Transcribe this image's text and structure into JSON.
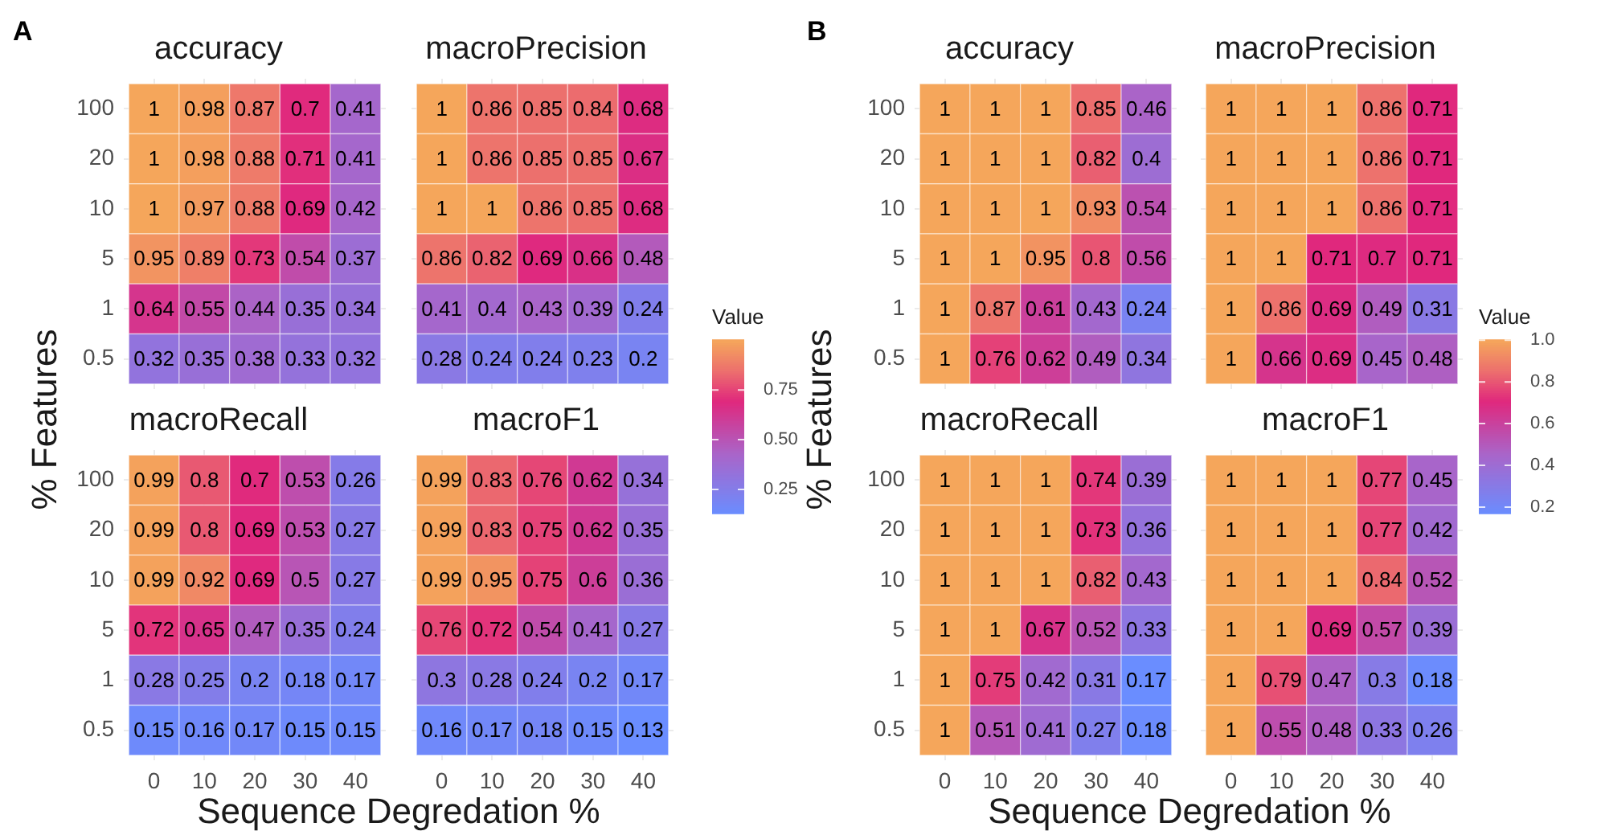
{
  "chart_data": [
    {
      "type": "heatmap",
      "title": "accuracy",
      "ylabel": "% Features",
      "annotations": [
        "A"
      ],
      "categories": [
        "0",
        "10",
        "20",
        "30",
        "40"
      ],
      "y_categories": [
        "100",
        "20",
        "10",
        "5",
        "1",
        "0.5"
      ],
      "grid": true,
      "data_labels": true,
      "tick_labels": "y",
      "cells": [
        [
          1,
          0.98,
          0.87,
          0.7,
          0.41
        ],
        [
          1,
          0.98,
          0.88,
          0.71,
          0.41
        ],
        [
          1,
          0.97,
          0.88,
          0.69,
          0.42
        ],
        [
          0.95,
          0.89,
          0.73,
          0.54,
          0.37
        ],
        [
          0.64,
          0.55,
          0.44,
          0.35,
          0.34
        ],
        [
          0.32,
          0.35,
          0.38,
          0.33,
          0.32
        ]
      ]
    },
    {
      "type": "heatmap",
      "title": "macroPrecision",
      "clabel": "Value",
      "categories": [
        "0",
        "10",
        "20",
        "30",
        "40"
      ],
      "y_categories": [
        "100",
        "20",
        "10",
        "5",
        "1",
        "0.5"
      ],
      "clim": [
        0.13,
        1
      ],
      "cticks": [
        {
          "value": 0.25,
          "label": "0.25"
        },
        {
          "value": 0.5,
          "label": "0.50"
        },
        {
          "value": 0.75,
          "label": "0.75"
        }
      ],
      "grid": true,
      "data_labels": true,
      "tick_labels": false,
      "cells": [
        [
          1,
          0.86,
          0.85,
          0.84,
          0.68
        ],
        [
          1,
          0.86,
          0.85,
          0.85,
          0.67
        ],
        [
          1,
          1,
          0.86,
          0.85,
          0.68
        ],
        [
          0.86,
          0.82,
          0.69,
          0.66,
          0.48
        ],
        [
          0.41,
          0.4,
          0.43,
          0.39,
          0.24
        ],
        [
          0.28,
          0.24,
          0.24,
          0.23,
          0.2
        ]
      ]
    },
    {
      "type": "heatmap",
      "title": "macroRecall",
      "xlabel": "Sequence Degredation %",
      "categories": [
        "0",
        "10",
        "20",
        "30",
        "40"
      ],
      "y_categories": [
        "100",
        "20",
        "10",
        "5",
        "1",
        "0.5"
      ],
      "grid": true,
      "data_labels": true,
      "cells": [
        [
          0.99,
          0.8,
          0.7,
          0.53,
          0.26
        ],
        [
          0.99,
          0.8,
          0.69,
          0.53,
          0.27
        ],
        [
          0.99,
          0.92,
          0.69,
          0.5,
          0.27
        ],
        [
          0.72,
          0.65,
          0.47,
          0.35,
          0.24
        ],
        [
          0.28,
          0.25,
          0.2,
          0.18,
          0.17
        ],
        [
          0.15,
          0.16,
          0.17,
          0.15,
          0.15
        ]
      ]
    },
    {
      "type": "heatmap",
      "title": "macroF1",
      "categories": [
        "0",
        "10",
        "20",
        "30",
        "40"
      ],
      "y_categories": [
        "100",
        "20",
        "10",
        "5",
        "1",
        "0.5"
      ],
      "grid": true,
      "data_labels": true,
      "tick_labels": "x",
      "cells": [
        [
          0.99,
          0.83,
          0.76,
          0.62,
          0.34
        ],
        [
          0.99,
          0.83,
          0.75,
          0.62,
          0.35
        ],
        [
          0.99,
          0.95,
          0.75,
          0.6,
          0.36
        ],
        [
          0.76,
          0.72,
          0.54,
          0.41,
          0.27
        ],
        [
          0.3,
          0.28,
          0.24,
          0.2,
          0.17
        ],
        [
          0.16,
          0.17,
          0.18,
          0.15,
          0.13
        ]
      ]
    },
    {
      "type": "heatmap",
      "title": "accuracy",
      "ylabel": "% Features",
      "annotations": [
        "B"
      ],
      "categories": [
        "0",
        "10",
        "20",
        "30",
        "40"
      ],
      "y_categories": [
        "100",
        "20",
        "10",
        "5",
        "1",
        "0.5"
      ],
      "grid": true,
      "data_labels": true,
      "tick_labels": "y",
      "cells": [
        [
          1,
          1,
          1,
          0.85,
          0.46
        ],
        [
          1,
          1,
          1,
          0.82,
          0.4
        ],
        [
          1,
          1,
          1,
          0.93,
          0.54
        ],
        [
          1,
          1,
          0.95,
          0.8,
          0.56
        ],
        [
          1,
          0.87,
          0.61,
          0.43,
          0.24
        ],
        [
          1,
          0.76,
          0.62,
          0.49,
          0.34
        ]
      ]
    },
    {
      "type": "heatmap",
      "title": "macroPrecision",
      "clabel": "Value",
      "categories": [
        "0",
        "10",
        "20",
        "30",
        "40"
      ],
      "y_categories": [
        "100",
        "20",
        "10",
        "5",
        "1",
        "0.5"
      ],
      "clim": [
        0.17,
        1
      ],
      "cticks": [
        0.2,
        0.4,
        0.6,
        0.8,
        {
          "value": 1,
          "label": "1.0"
        }
      ],
      "grid": true,
      "data_labels": true,
      "tick_labels": false,
      "cells": [
        [
          1,
          1,
          1,
          0.86,
          0.71
        ],
        [
          1,
          1,
          1,
          0.86,
          0.71
        ],
        [
          1,
          1,
          1,
          0.86,
          0.71
        ],
        [
          1,
          1,
          0.71,
          0.7,
          0.71
        ],
        [
          1,
          0.86,
          0.69,
          0.49,
          0.31
        ],
        [
          1,
          0.66,
          0.69,
          0.45,
          0.48
        ]
      ]
    },
    {
      "type": "heatmap",
      "title": "macroRecall",
      "xlabel": "Sequence Degredation %",
      "categories": [
        "0",
        "10",
        "20",
        "30",
        "40"
      ],
      "y_categories": [
        "100",
        "20",
        "10",
        "5",
        "1",
        "0.5"
      ],
      "grid": true,
      "data_labels": true,
      "cells": [
        [
          1,
          1,
          1,
          0.74,
          0.39
        ],
        [
          1,
          1,
          1,
          0.73,
          0.36
        ],
        [
          1,
          1,
          1,
          0.82,
          0.43
        ],
        [
          1,
          1,
          0.67,
          0.52,
          0.33
        ],
        [
          1,
          0.75,
          0.42,
          0.31,
          0.17
        ],
        [
          1,
          0.51,
          0.41,
          0.27,
          0.18
        ]
      ]
    },
    {
      "type": "heatmap",
      "title": "macroF1",
      "categories": [
        "0",
        "10",
        "20",
        "30",
        "40"
      ],
      "y_categories": [
        "100",
        "20",
        "10",
        "5",
        "1",
        "0.5"
      ],
      "grid": true,
      "data_labels": true,
      "tick_labels": "x",
      "cells": [
        [
          1,
          1,
          1,
          0.77,
          0.45
        ],
        [
          1,
          1,
          1,
          0.77,
          0.42
        ],
        [
          1,
          1,
          1,
          0.84,
          0.52
        ],
        [
          1,
          1,
          0.69,
          0.57,
          0.39
        ],
        [
          1,
          0.79,
          0.47,
          0.3,
          0.18
        ],
        [
          1,
          0.55,
          0.48,
          0.33,
          0.26
        ]
      ]
    }
  ]
}
